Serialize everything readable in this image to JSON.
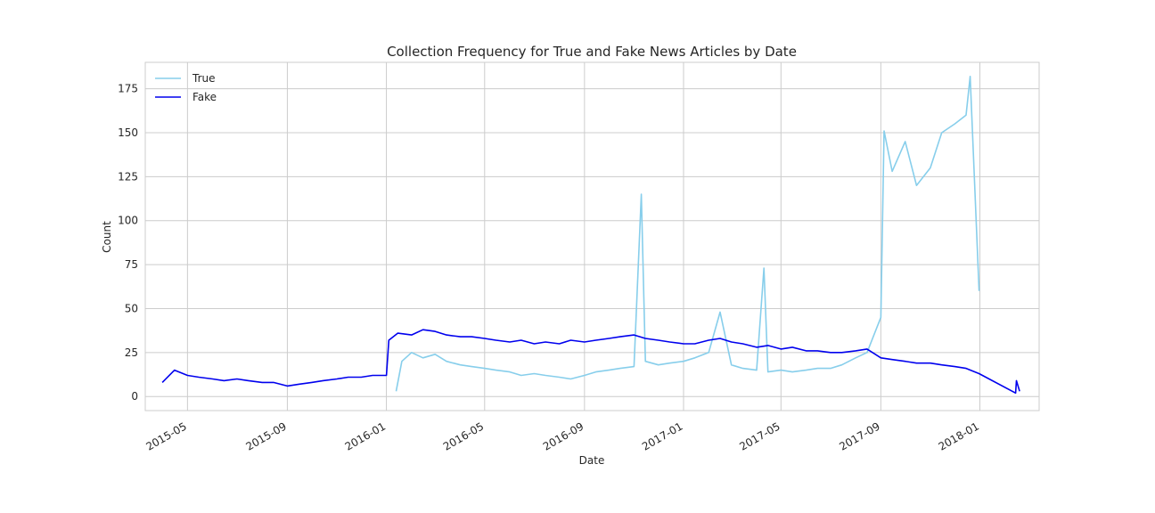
{
  "chart_data": {
    "type": "line",
    "title": "Collection Frequency for True and Fake News Articles by Date",
    "xlabel": "Date",
    "ylabel": "Count",
    "x_ticks": [
      "2015-05",
      "2015-09",
      "2016-01",
      "2016-05",
      "2016-09",
      "2017-01",
      "2017-05",
      "2017-09",
      "2018-01"
    ],
    "xlim": [
      "2015-03-10",
      "2018-03-15"
    ],
    "ylim": [
      -8,
      190
    ],
    "y_ticks": [
      0,
      25,
      50,
      75,
      100,
      125,
      150,
      175
    ],
    "grid": true,
    "legend_position": "top-left",
    "series": [
      {
        "name": "True",
        "color": "#87ceeb",
        "x": [
          "2016-01-13",
          "2016-01-20",
          "2016-02-01",
          "2016-02-15",
          "2016-03-01",
          "2016-03-15",
          "2016-04-01",
          "2016-04-15",
          "2016-05-01",
          "2016-05-15",
          "2016-06-01",
          "2016-06-15",
          "2016-07-01",
          "2016-07-15",
          "2016-08-01",
          "2016-08-15",
          "2016-09-01",
          "2016-09-15",
          "2016-10-01",
          "2016-10-15",
          "2016-11-01",
          "2016-11-10",
          "2016-11-15",
          "2016-12-01",
          "2016-12-15",
          "2017-01-01",
          "2017-01-15",
          "2017-02-01",
          "2017-02-15",
          "2017-03-01",
          "2017-03-15",
          "2017-04-01",
          "2017-04-10",
          "2017-04-15",
          "2017-05-01",
          "2017-05-15",
          "2017-06-01",
          "2017-06-15",
          "2017-07-01",
          "2017-07-15",
          "2017-08-01",
          "2017-08-15",
          "2017-09-01",
          "2017-09-05",
          "2017-09-15",
          "2017-10-01",
          "2017-10-15",
          "2017-11-01",
          "2017-11-15",
          "2017-12-01",
          "2017-12-15",
          "2017-12-20",
          "2017-12-31"
        ],
        "values": [
          3,
          20,
          25,
          22,
          24,
          20,
          18,
          17,
          16,
          15,
          14,
          12,
          13,
          12,
          11,
          10,
          12,
          14,
          15,
          16,
          17,
          115,
          20,
          18,
          19,
          20,
          22,
          25,
          48,
          18,
          16,
          15,
          73,
          14,
          15,
          14,
          15,
          16,
          16,
          18,
          22,
          25,
          45,
          151,
          128,
          145,
          120,
          130,
          150,
          155,
          160,
          182,
          60
        ]
      },
      {
        "name": "Fake",
        "color": "#0000ee",
        "x": [
          "2015-03-31",
          "2015-04-15",
          "2015-05-01",
          "2015-05-15",
          "2015-06-01",
          "2015-06-15",
          "2015-07-01",
          "2015-07-15",
          "2015-08-01",
          "2015-08-15",
          "2015-09-01",
          "2015-09-15",
          "2015-10-01",
          "2015-10-15",
          "2015-11-01",
          "2015-11-15",
          "2015-12-01",
          "2015-12-15",
          "2016-01-01",
          "2016-01-04",
          "2016-01-15",
          "2016-02-01",
          "2016-02-15",
          "2016-03-01",
          "2016-03-15",
          "2016-04-01",
          "2016-04-15",
          "2016-05-01",
          "2016-05-15",
          "2016-06-01",
          "2016-06-15",
          "2016-07-01",
          "2016-07-15",
          "2016-08-01",
          "2016-08-15",
          "2016-09-01",
          "2016-09-15",
          "2016-10-01",
          "2016-10-15",
          "2016-11-01",
          "2016-11-15",
          "2016-12-01",
          "2016-12-15",
          "2017-01-01",
          "2017-01-15",
          "2017-02-01",
          "2017-02-15",
          "2017-03-01",
          "2017-03-15",
          "2017-04-01",
          "2017-04-15",
          "2017-05-01",
          "2017-05-15",
          "2017-06-01",
          "2017-06-15",
          "2017-07-01",
          "2017-07-15",
          "2017-08-01",
          "2017-08-15",
          "2017-09-01",
          "2017-09-15",
          "2017-10-01",
          "2017-10-15",
          "2017-11-01",
          "2017-11-15",
          "2017-12-01",
          "2017-12-15",
          "2017-12-31",
          "2018-02-14",
          "2018-02-15",
          "2018-02-19"
        ],
        "values": [
          8,
          15,
          12,
          11,
          10,
          9,
          10,
          9,
          8,
          8,
          6,
          7,
          8,
          9,
          10,
          11,
          11,
          12,
          12,
          32,
          36,
          35,
          38,
          37,
          35,
          34,
          34,
          33,
          32,
          31,
          32,
          30,
          31,
          30,
          32,
          31,
          32,
          33,
          34,
          35,
          33,
          32,
          31,
          30,
          30,
          32,
          33,
          31,
          30,
          28,
          29,
          27,
          28,
          26,
          26,
          25,
          25,
          26,
          27,
          22,
          21,
          20,
          19,
          19,
          18,
          17,
          16,
          13,
          2,
          9,
          3
        ]
      }
    ]
  }
}
